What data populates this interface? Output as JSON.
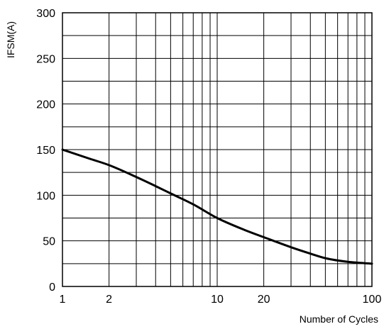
{
  "chart_data": {
    "type": "line",
    "title": "",
    "xlabel": "Number of Cycles",
    "ylabel": "IFSM(A)",
    "xscale": "log",
    "xlim": [
      1,
      100
    ],
    "ylim": [
      0,
      300
    ],
    "grid": true,
    "x_tick_labels": [
      {
        "value": 1,
        "label": "1"
      },
      {
        "value": 2,
        "label": "2"
      },
      {
        "value": 10,
        "label": "10"
      },
      {
        "value": 20,
        "label": "20"
      },
      {
        "value": 100,
        "label": "100"
      }
    ],
    "y_tick_labels": [
      {
        "value": 0,
        "label": "0"
      },
      {
        "value": 50,
        "label": "50"
      },
      {
        "value": 100,
        "label": "100"
      },
      {
        "value": 150,
        "label": "150"
      },
      {
        "value": 200,
        "label": "200"
      },
      {
        "value": 250,
        "label": "250"
      },
      {
        "value": 300,
        "label": "300"
      }
    ],
    "series": [
      {
        "x": [
          1,
          1.5,
          2,
          3,
          4,
          5,
          7,
          10,
          15,
          20,
          30,
          40,
          50,
          70,
          100
        ],
        "y": [
          150,
          140,
          133,
          120,
          110,
          102,
          90,
          75,
          62,
          54,
          43,
          36,
          31,
          27,
          25
        ]
      }
    ],
    "colors": {
      "line": "#000000",
      "grid": "#000000",
      "background": "#ffffff"
    }
  }
}
